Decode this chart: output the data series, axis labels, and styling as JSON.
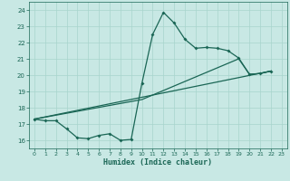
{
  "xlabel": "Humidex (Indice chaleur)",
  "xlim": [
    -0.5,
    23.5
  ],
  "ylim": [
    15.5,
    24.5
  ],
  "xticks": [
    0,
    1,
    2,
    3,
    4,
    5,
    6,
    7,
    8,
    9,
    10,
    11,
    12,
    13,
    14,
    15,
    16,
    17,
    18,
    19,
    20,
    21,
    22,
    23
  ],
  "yticks": [
    16,
    17,
    18,
    19,
    20,
    21,
    22,
    23,
    24
  ],
  "bg_color": "#c8e8e4",
  "line_color": "#1a6655",
  "grid_color": "#a8d4cc",
  "main_x": [
    0,
    1,
    2,
    3,
    4,
    5,
    6,
    7,
    8,
    9,
    10,
    11,
    12,
    13,
    14,
    15,
    16,
    17,
    18,
    19,
    20,
    21,
    22
  ],
  "main_y": [
    17.3,
    17.2,
    17.2,
    16.7,
    16.15,
    16.1,
    16.3,
    16.4,
    16.0,
    16.05,
    19.5,
    22.5,
    23.85,
    23.2,
    22.2,
    21.65,
    21.7,
    21.65,
    21.5,
    21.05,
    20.05,
    20.1,
    20.25
  ],
  "line2_x": [
    0,
    22
  ],
  "line2_y": [
    17.3,
    20.25
  ],
  "line3_x": [
    0,
    10,
    19,
    20,
    21,
    22
  ],
  "line3_y": [
    17.3,
    18.5,
    21.0,
    20.05,
    20.1,
    20.25
  ]
}
